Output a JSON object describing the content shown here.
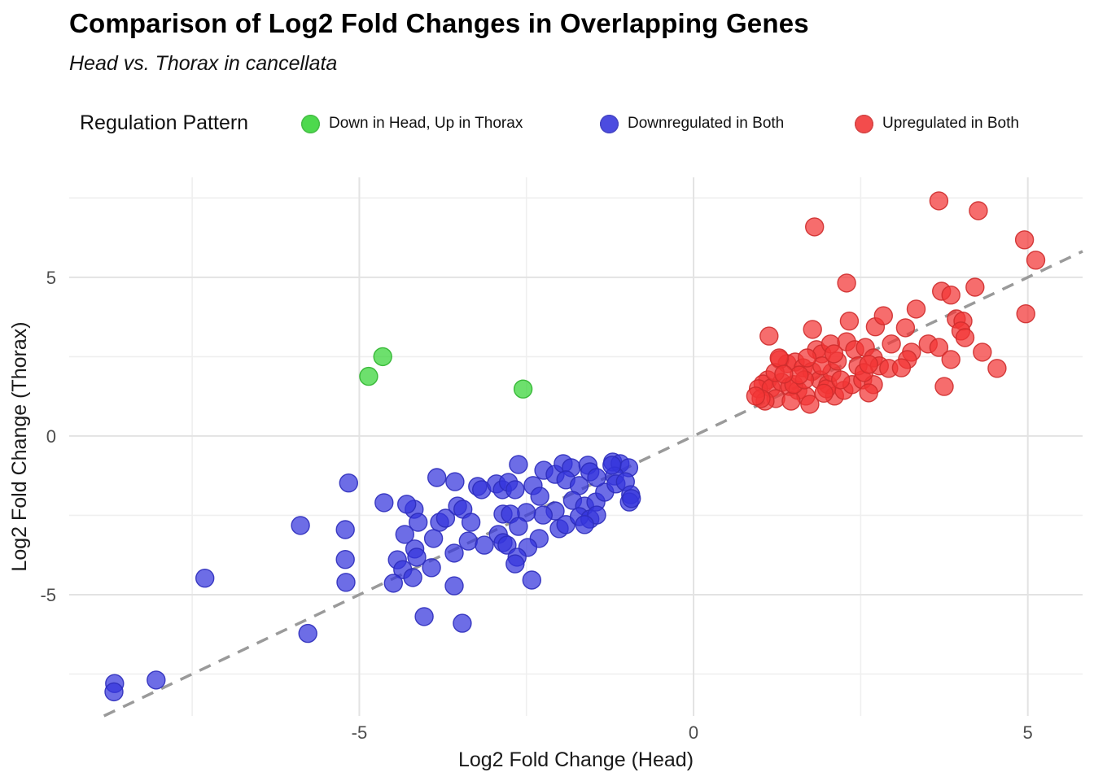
{
  "header": {
    "title": "Comparison of Log2 Fold Changes in Overlapping Genes",
    "subtitle": "Head vs. Thorax in cancellata"
  },
  "legend": {
    "title": "Regulation Pattern",
    "items": [
      {
        "label": "Down in Head, Up in Thorax",
        "color": "#35d435"
      },
      {
        "label": "Downregulated in Both",
        "color": "#3434dc"
      },
      {
        "label": "Upregulated in Both",
        "color": "#f23434"
      }
    ]
  },
  "axes": {
    "x_ticks": [
      "-5",
      "0",
      "5"
    ],
    "y_ticks": [
      "5",
      "0",
      "-5"
    ]
  },
  "chart_data": {
    "type": "scatter",
    "title": "Comparison of Log2 Fold Changes in Overlapping Genes",
    "subtitle": "Head vs. Thorax in cancellata",
    "xlabel": "Log2 Fold Change (Head)",
    "ylabel": "Log2 Fold Change (Thorax)",
    "xlim": [
      -9.34,
      5.82
    ],
    "ylim": [
      -8.82,
      8.15
    ],
    "x_major_ticks": [
      -5,
      0,
      5
    ],
    "x_minor_ticks": [
      -7.5,
      -2.5,
      2.5,
      7.5
    ],
    "y_major_ticks": [
      -5,
      0,
      5
    ],
    "y_minor_ticks": [
      -7.5,
      -2.5,
      2.5,
      7.5
    ],
    "grid": true,
    "legend_position": "top",
    "reference_line": {
      "style": "dashed",
      "slope": 1,
      "intercept": 0,
      "color": "#9a9a9a"
    },
    "colors": {
      "grid_major": "#e3e3e3",
      "grid_minor": "#efefef",
      "tick_label": "#4d4d4d",
      "axis_title": "#1a1a1a"
    },
    "series": [
      {
        "name": "Down in Head, Up in Thorax",
        "color": "#35d435",
        "points": [
          [
            -4.65,
            2.5
          ],
          [
            -4.86,
            1.88
          ],
          [
            -2.55,
            1.48
          ]
        ]
      },
      {
        "name": "Downregulated in Both",
        "color": "#3434dc",
        "points": [
          [
            -8.66,
            -7.8
          ],
          [
            -8.67,
            -8.06
          ],
          [
            -8.04,
            -7.69
          ],
          [
            -5.77,
            -6.22
          ],
          [
            -7.31,
            -4.48
          ],
          [
            -5.88,
            -2.82
          ],
          [
            -5.16,
            -1.48
          ],
          [
            -5.21,
            -2.95
          ],
          [
            -5.21,
            -3.89
          ],
          [
            -5.2,
            -4.61
          ],
          [
            -4.63,
            -2.1
          ],
          [
            -4.32,
            -3.1
          ],
          [
            -4.43,
            -3.9
          ],
          [
            -4.35,
            -4.21
          ],
          [
            -4.2,
            -4.46
          ],
          [
            -4.49,
            -4.64
          ],
          [
            -4.03,
            -5.69
          ],
          [
            -3.46,
            -5.9
          ],
          [
            -3.58,
            -4.72
          ],
          [
            -2.42,
            -4.54
          ],
          [
            -4.18,
            -2.31
          ],
          [
            -4.29,
            -2.15
          ],
          [
            -4.12,
            -2.72
          ],
          [
            -4.17,
            -3.56
          ],
          [
            -4.14,
            -3.82
          ],
          [
            -3.92,
            -4.15
          ],
          [
            -3.84,
            -1.31
          ],
          [
            -3.57,
            -1.44
          ],
          [
            -3.8,
            -2.72
          ],
          [
            -3.71,
            -2.59
          ],
          [
            -3.89,
            -3.23
          ],
          [
            -3.53,
            -2.21
          ],
          [
            -3.45,
            -2.31
          ],
          [
            -3.33,
            -2.72
          ],
          [
            -3.37,
            -3.31
          ],
          [
            -3.58,
            -3.69
          ],
          [
            -3.23,
            -1.59
          ],
          [
            -3.17,
            -1.69
          ],
          [
            -2.95,
            -1.51
          ],
          [
            -2.86,
            -1.69
          ],
          [
            -2.92,
            -3.1
          ],
          [
            -3.13,
            -3.44
          ],
          [
            -2.85,
            -2.46
          ],
          [
            -2.85,
            -3.36
          ],
          [
            -2.77,
            -1.46
          ],
          [
            -2.67,
            -1.69
          ],
          [
            -2.62,
            -0.9
          ],
          [
            -2.4,
            -1.56
          ],
          [
            -2.3,
            -1.9
          ],
          [
            -2.24,
            -1.08
          ],
          [
            -2.07,
            -1.21
          ],
          [
            -2.07,
            -2.36
          ],
          [
            -2.25,
            -2.49
          ],
          [
            -2.5,
            -2.41
          ],
          [
            -2.74,
            -2.46
          ],
          [
            -2.62,
            -2.85
          ],
          [
            -2.01,
            -2.92
          ],
          [
            -1.91,
            -2.79
          ],
          [
            -2.31,
            -3.23
          ],
          [
            -2.48,
            -3.51
          ],
          [
            -2.79,
            -3.44
          ],
          [
            -2.64,
            -3.82
          ],
          [
            -2.67,
            -4.03
          ],
          [
            -1.95,
            -0.87
          ],
          [
            -1.83,
            -1.0
          ],
          [
            -1.91,
            -1.38
          ],
          [
            -1.71,
            -1.56
          ],
          [
            -1.81,
            -2.03
          ],
          [
            -1.63,
            -2.21
          ],
          [
            -1.46,
            -2.08
          ],
          [
            -1.33,
            -1.77
          ],
          [
            -1.58,
            -0.92
          ],
          [
            -1.55,
            -1.13
          ],
          [
            -1.45,
            -1.31
          ],
          [
            -1.21,
            -0.82
          ],
          [
            -1.1,
            -0.87
          ],
          [
            -0.97,
            -1.0
          ],
          [
            -1.18,
            -1.26
          ],
          [
            -1.16,
            -1.51
          ],
          [
            -1.02,
            -1.44
          ],
          [
            -0.94,
            -1.85
          ],
          [
            -0.96,
            -2.08
          ],
          [
            -1.71,
            -2.54
          ],
          [
            -1.55,
            -2.62
          ],
          [
            -1.45,
            -2.49
          ],
          [
            -1.63,
            -2.79
          ],
          [
            -0.93,
            -1.97
          ],
          [
            -1.22,
            -0.92
          ]
        ]
      },
      {
        "name": "Upregulated in Both",
        "color": "#f23434",
        "points": [
          [
            1.13,
            3.15
          ],
          [
            1.78,
            3.36
          ],
          [
            2.33,
            3.62
          ],
          [
            2.72,
            3.44
          ],
          [
            2.96,
            2.9
          ],
          [
            1.84,
            2.72
          ],
          [
            1.92,
            2.59
          ],
          [
            2.05,
            2.9
          ],
          [
            2.29,
            2.97
          ],
          [
            2.41,
            2.72
          ],
          [
            2.57,
            2.79
          ],
          [
            2.69,
            2.46
          ],
          [
            2.78,
            2.21
          ],
          [
            2.92,
            2.13
          ],
          [
            1.4,
            2.28
          ],
          [
            1.29,
            2.41
          ],
          [
            1.52,
            2.33
          ],
          [
            1.64,
            2.15
          ],
          [
            1.77,
            2.03
          ],
          [
            1.89,
            1.77
          ],
          [
            2.01,
            1.62
          ],
          [
            1.11,
            1.77
          ],
          [
            1.04,
            1.64
          ],
          [
            0.97,
            1.49
          ],
          [
            1.16,
            1.51
          ],
          [
            1.32,
            1.69
          ],
          [
            1.44,
            1.56
          ],
          [
            1.56,
            1.44
          ],
          [
            1.68,
            1.26
          ],
          [
            1.23,
            1.18
          ],
          [
            1.07,
            1.1
          ],
          [
            1.46,
            1.1
          ],
          [
            1.74,
            1.0
          ],
          [
            2.11,
            1.26
          ],
          [
            2.25,
            1.44
          ],
          [
            2.37,
            1.62
          ],
          [
            2.53,
            1.77
          ],
          [
            2.69,
            1.62
          ],
          [
            2.62,
            1.36
          ],
          [
            4.97,
            3.85
          ],
          [
            3.93,
            3.69
          ],
          [
            4.03,
            3.62
          ],
          [
            4.0,
            3.31
          ],
          [
            4.06,
            3.1
          ],
          [
            3.51,
            2.9
          ],
          [
            3.67,
            2.79
          ],
          [
            3.26,
            2.64
          ],
          [
            3.2,
            2.41
          ],
          [
            3.11,
            2.15
          ],
          [
            3.85,
            2.41
          ],
          [
            4.32,
            2.64
          ],
          [
            4.54,
            2.13
          ],
          [
            3.75,
            1.56
          ],
          [
            3.17,
            3.41
          ],
          [
            1.81,
            6.59
          ],
          [
            2.29,
            4.82
          ],
          [
            2.84,
            3.79
          ],
          [
            3.33,
            4.0
          ],
          [
            3.67,
            7.41
          ],
          [
            4.26,
            7.1
          ],
          [
            4.95,
            6.18
          ],
          [
            5.12,
            5.54
          ],
          [
            4.21,
            4.69
          ],
          [
            3.71,
            4.56
          ],
          [
            3.85,
            4.44
          ],
          [
            1.01,
            1.18
          ],
          [
            0.93,
            1.26
          ],
          [
            1.22,
            2.0
          ],
          [
            1.28,
            2.46
          ],
          [
            1.5,
            1.62
          ],
          [
            1.66,
            1.77
          ],
          [
            1.99,
            1.49
          ],
          [
            2.07,
            2.0
          ],
          [
            2.2,
            1.77
          ],
          [
            1.92,
            2.21
          ],
          [
            2.15,
            2.36
          ],
          [
            2.46,
            2.21
          ],
          [
            2.1,
            2.59
          ],
          [
            1.7,
            2.46
          ],
          [
            1.58,
            1.92
          ],
          [
            1.35,
            1.95
          ],
          [
            2.55,
            2.0
          ],
          [
            1.95,
            1.35
          ],
          [
            2.62,
            2.26
          ]
        ]
      }
    ]
  }
}
